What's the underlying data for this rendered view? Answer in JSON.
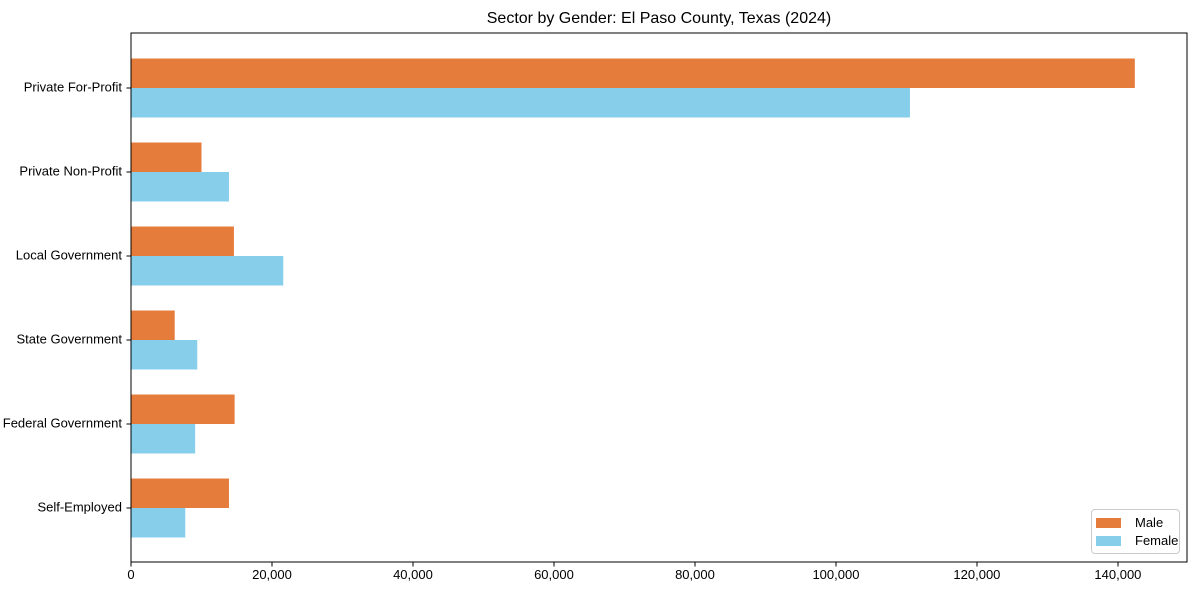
{
  "figure": {
    "background": "#ffffff",
    "text_color": "#000000",
    "axis_color": "#000000"
  },
  "chart_data": {
    "type": "bar",
    "orientation": "horizontal",
    "title": "Sector by Gender: El Paso County, Texas (2024)",
    "categories": [
      "Private For-Profit",
      "Private Non-Profit",
      "Local Government",
      "State Government",
      "Federal Government",
      "Self-Employed"
    ],
    "series": [
      {
        "name": "Male",
        "color": "#e67c3c",
        "values": [
          142400,
          10000,
          14600,
          6200,
          14700,
          13900
        ]
      },
      {
        "name": "Female",
        "color": "#87ceeb",
        "values": [
          110500,
          13900,
          21600,
          9400,
          9100,
          7700
        ]
      }
    ],
    "xlabel": "",
    "ylabel": "",
    "xlim": [
      0,
      149800
    ],
    "xticks": [
      0,
      20000,
      40000,
      60000,
      80000,
      100000,
      120000,
      140000
    ],
    "xtick_labels": [
      "0",
      "20,000",
      "40,000",
      "60,000",
      "80,000",
      "100,000",
      "120,000",
      "140,000"
    ],
    "grid": false,
    "legend": {
      "position": "lower right"
    }
  }
}
